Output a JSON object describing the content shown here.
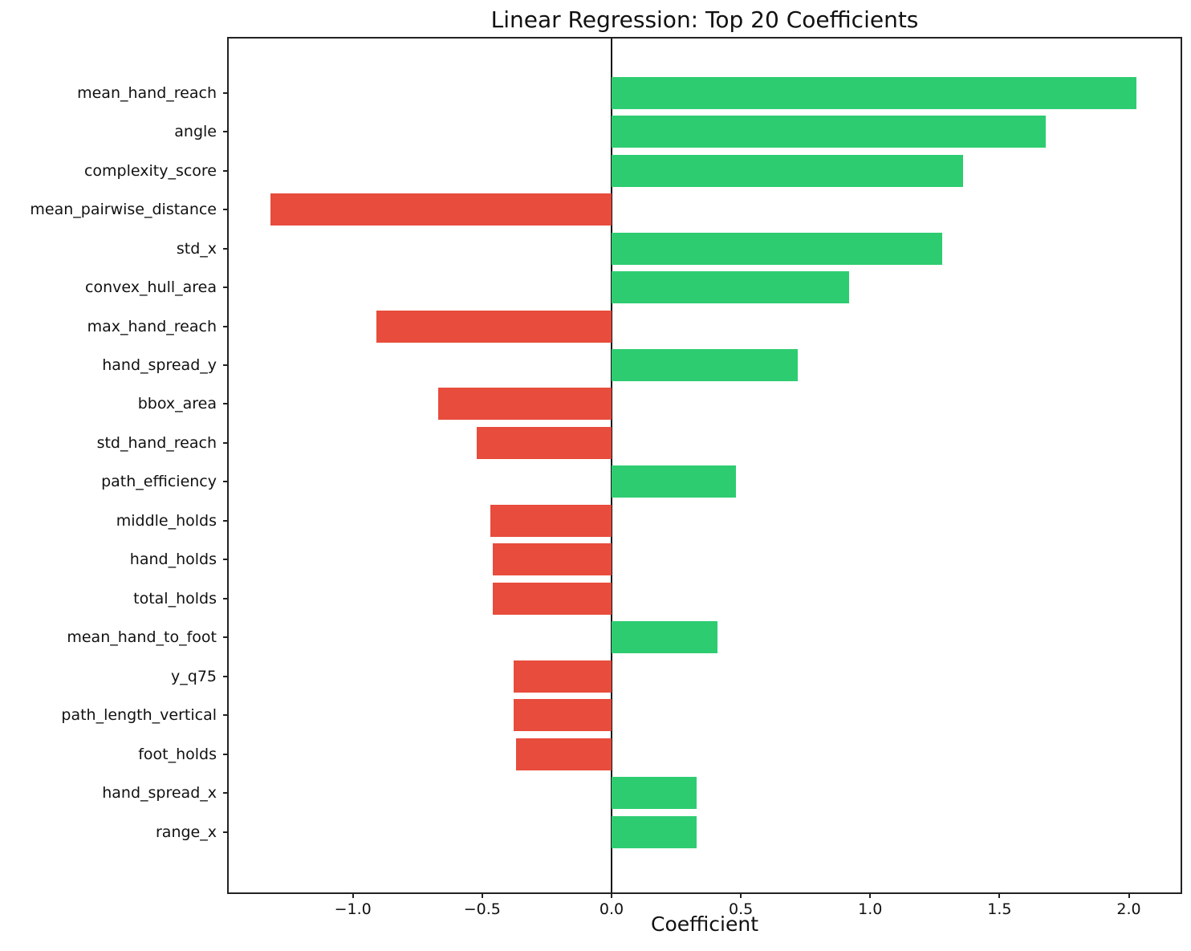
{
  "chart_data": {
    "type": "bar",
    "orientation": "horizontal",
    "title": "Linear Regression: Top 20 Coefficients",
    "xlabel": "Coefficient",
    "ylabel": "",
    "categories": [
      "mean_hand_reach",
      "angle",
      "complexity_score",
      "mean_pairwise_distance",
      "std_x",
      "convex_hull_area",
      "max_hand_reach",
      "hand_spread_y",
      "bbox_area",
      "std_hand_reach",
      "path_efficiency",
      "middle_holds",
      "hand_holds",
      "total_holds",
      "mean_hand_to_foot",
      "y_q75",
      "path_length_vertical",
      "foot_holds",
      "hand_spread_x",
      "range_x"
    ],
    "values": [
      2.03,
      1.68,
      1.36,
      -1.32,
      1.28,
      0.92,
      -0.91,
      0.72,
      -0.67,
      -0.52,
      0.48,
      -0.47,
      -0.46,
      -0.46,
      0.41,
      -0.38,
      -0.38,
      -0.37,
      0.33,
      0.33
    ],
    "positive_color": "#2ecc71",
    "negative_color": "#e74c3c",
    "xlim": [
      -1.48,
      2.2
    ],
    "xticks": [
      -1.0,
      -0.5,
      0.0,
      0.5,
      1.0,
      1.5,
      2.0
    ],
    "xtick_labels": [
      "−1.0",
      "−0.5",
      "0.0",
      "0.5",
      "1.0",
      "1.5",
      "2.0"
    ],
    "grid": false,
    "legend": "none",
    "zero_line": true
  }
}
